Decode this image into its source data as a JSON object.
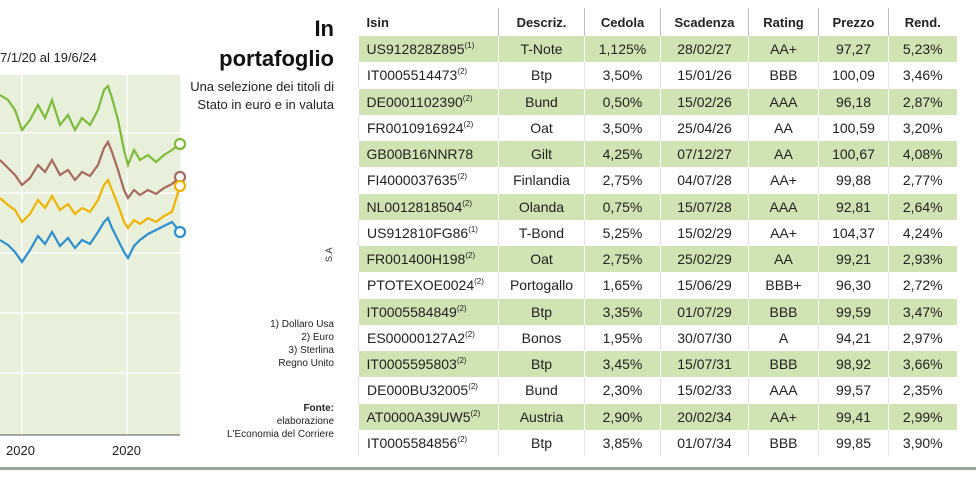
{
  "chart_fragment": {
    "period_text": "7/1/20 al 19/6/24",
    "x_ticks": [
      "2020",
      "2020"
    ],
    "colors": {
      "green": "#7dbb3a",
      "brown": "#a66a5e",
      "orange": "#f0b400",
      "blue": "#2b8fcf",
      "panel": "#e8f0dc"
    }
  },
  "side": {
    "title_in": "In",
    "title_portafoglio": "portafoglio",
    "subtitle": "Una selezione dei titoli di Stato in euro e in valuta",
    "sa": "S.A",
    "notes": [
      "1) Dollaro Usa",
      "2) Euro",
      "3) Sterlina",
      "Regno Unito"
    ],
    "source_label": "Fonte:",
    "source_text": "elaborazione L'Economia del Corriere"
  },
  "table": {
    "headers": [
      "Isin",
      "Descriz.",
      "Cedola",
      "Scadenza",
      "Rating",
      "Prezzo",
      "Rend."
    ],
    "rows": [
      {
        "isin": "US912828Z895",
        "note": "(1)",
        "descr": "T-Note",
        "cedola": "1,125%",
        "scadenza": "28/02/27",
        "rating": "AA+",
        "prezzo": "97,27",
        "rend": "5,23%"
      },
      {
        "isin": "IT0005514473",
        "note": "(2)",
        "descr": "Btp",
        "cedola": "3,50%",
        "scadenza": "15/01/26",
        "rating": "BBB",
        "prezzo": "100,09",
        "rend": "3,46%"
      },
      {
        "isin": "DE0001102390",
        "note": "(2)",
        "descr": "Bund",
        "cedola": "0,50%",
        "scadenza": "15/02/26",
        "rating": "AAA",
        "prezzo": "96,18",
        "rend": "2,87%"
      },
      {
        "isin": "FR0010916924",
        "note": "(2)",
        "descr": "Oat",
        "cedola": "3,50%",
        "scadenza": "25/04/26",
        "rating": "AA",
        "prezzo": "100,59",
        "rend": "3,20%"
      },
      {
        "isin": "GB00B16NNR78",
        "note": "",
        "descr": "Gilt",
        "cedola": "4,25%",
        "scadenza": "07/12/27",
        "rating": "AA",
        "prezzo": "100,67",
        "rend": "4,08%"
      },
      {
        "isin": "FI4000037635",
        "note": "(2)",
        "descr": "Finlandia",
        "cedola": "2,75%",
        "scadenza": "04/07/28",
        "rating": "AA+",
        "prezzo": "99,88",
        "rend": "2,77%"
      },
      {
        "isin": "NL0012818504",
        "note": "(2)",
        "descr": "Olanda",
        "cedola": "0,75%",
        "scadenza": "15/07/28",
        "rating": "AAA",
        "prezzo": "92,81",
        "rend": "2,64%"
      },
      {
        "isin": "US912810FG86",
        "note": "(1)",
        "descr": "T-Bond",
        "cedola": "5,25%",
        "scadenza": "15/02/29",
        "rating": "AA+",
        "prezzo": "104,37",
        "rend": "4,24%"
      },
      {
        "isin": "FR001400H198",
        "note": "(2)",
        "descr": "Oat",
        "cedola": "2,75%",
        "scadenza": "25/02/29",
        "rating": "AA",
        "prezzo": "99,21",
        "rend": "2,93%"
      },
      {
        "isin": "PTOTEXOE0024",
        "note": "(2)",
        "descr": "Portogallo",
        "cedola": "1,65%",
        "scadenza": "15/06/29",
        "rating": "BBB+",
        "prezzo": "96,30",
        "rend": "2,72%"
      },
      {
        "isin": "IT0005584849",
        "note": "(2)",
        "descr": "Btp",
        "cedola": "3,35%",
        "scadenza": "01/07/29",
        "rating": "BBB",
        "prezzo": "99,59",
        "rend": "3,47%"
      },
      {
        "isin": "ES00000127A2",
        "note": "(2)",
        "descr": "Bonos",
        "cedola": "1,95%",
        "scadenza": "30/07/30",
        "rating": "A",
        "prezzo": "94,21",
        "rend": "2,97%"
      },
      {
        "isin": "IT0005595803",
        "note": "(2)",
        "descr": "Btp",
        "cedola": "3,45%",
        "scadenza": "15/07/31",
        "rating": "BBB",
        "prezzo": "98,92",
        "rend": "3,66%"
      },
      {
        "isin": "DE000BU32005",
        "note": "(2)",
        "descr": "Bund",
        "cedola": "2,30%",
        "scadenza": "15/02/33",
        "rating": "AAA",
        "prezzo": "99,57",
        "rend": "2,35%"
      },
      {
        "isin": "AT0000A39UW5",
        "note": "(2)",
        "descr": "Austria",
        "cedola": "2,90%",
        "scadenza": "20/02/34",
        "rating": "AA+",
        "prezzo": "99,41",
        "rend": "2,99%"
      },
      {
        "isin": "IT0005584856",
        "note": "(2)",
        "descr": "Btp",
        "cedola": "3,85%",
        "scadenza": "01/07/34",
        "rating": "BBB",
        "prezzo": "99,85",
        "rend": "3,90%"
      }
    ]
  }
}
